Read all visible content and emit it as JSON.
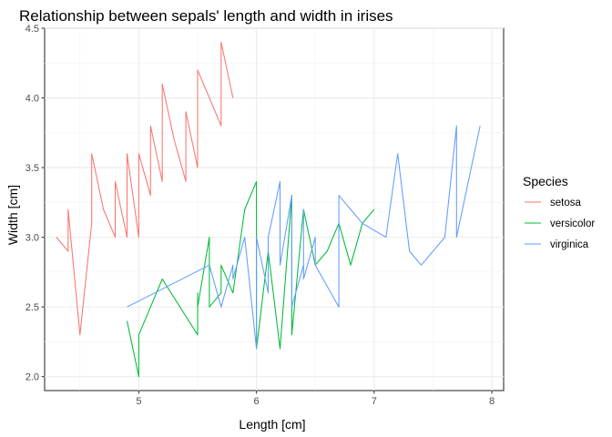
{
  "chart_data": {
    "type": "line",
    "title": "Relationship between sepals' length and width in irises",
    "xlabel": "Length [cm]",
    "ylabel": "Width [cm]",
    "xlim": [
      4.2,
      8.1
    ],
    "ylim": [
      1.9,
      4.5
    ],
    "x_ticks": [
      5,
      6,
      7,
      8
    ],
    "y_ticks": [
      2.0,
      2.5,
      3.0,
      3.5,
      4.0,
      4.5
    ],
    "y_tick_labels": [
      "2.0",
      "2.5",
      "3.0",
      "3.5",
      "4.0",
      "4.5"
    ],
    "grid": true,
    "legend_title": "Species",
    "legend_position": "right",
    "series": [
      {
        "name": "setosa",
        "color": "#F8766D",
        "x": [
          4.3,
          4.4,
          4.4,
          4.4,
          4.5,
          4.6,
          4.6,
          4.6,
          4.6,
          4.7,
          4.7,
          4.8,
          4.8,
          4.8,
          4.8,
          4.8,
          4.9,
          4.9,
          4.9,
          4.9,
          5.0,
          5.0,
          5.0,
          5.0,
          5.0,
          5.0,
          5.0,
          5.0,
          5.1,
          5.1,
          5.1,
          5.1,
          5.1,
          5.1,
          5.1,
          5.1,
          5.1,
          5.2,
          5.2,
          5.2,
          5.3,
          5.4,
          5.4,
          5.4,
          5.4,
          5.4,
          5.4,
          5.5,
          5.5,
          5.7,
          5.7,
          5.8
        ],
        "y": [
          3.0,
          2.9,
          3.0,
          3.2,
          2.3,
          3.1,
          3.2,
          3.4,
          3.6,
          3.2,
          3.2,
          3.0,
          3.0,
          3.1,
          3.4,
          3.4,
          3.0,
          3.1,
          3.1,
          3.6,
          3.0,
          3.2,
          3.3,
          3.4,
          3.4,
          3.5,
          3.5,
          3.6,
          3.3,
          3.4,
          3.5,
          3.5,
          3.7,
          3.8,
          3.8,
          3.8,
          3.8,
          3.4,
          3.5,
          4.1,
          3.7,
          3.4,
          3.7,
          3.9,
          3.9,
          3.4,
          3.9,
          3.5,
          4.2,
          3.8,
          4.4,
          4.0
        ]
      },
      {
        "name": "versicolor",
        "color": "#00BA38",
        "x": [
          4.9,
          5.0,
          5.0,
          5.1,
          5.2,
          5.5,
          5.5,
          5.5,
          5.5,
          5.6,
          5.6,
          5.7,
          5.7,
          5.8,
          5.9,
          6.0,
          6.0,
          6.1,
          6.2,
          6.3,
          6.3,
          6.4,
          6.5,
          6.6,
          6.7,
          6.8,
          6.9,
          7.0
        ],
        "y": [
          2.4,
          2.0,
          2.3,
          2.5,
          2.7,
          2.3,
          2.6,
          2.4,
          2.5,
          3.0,
          2.5,
          2.6,
          2.8,
          2.6,
          3.2,
          3.4,
          2.2,
          2.9,
          2.2,
          3.3,
          2.3,
          3.2,
          2.8,
          2.9,
          3.1,
          2.8,
          3.1,
          3.2
        ]
      },
      {
        "name": "virginica",
        "color": "#619CFF",
        "x": [
          4.9,
          5.6,
          5.7,
          5.8,
          5.8,
          5.9,
          6.0,
          6.0,
          6.1,
          6.1,
          6.2,
          6.2,
          6.3,
          6.3,
          6.4,
          6.4,
          6.4,
          6.5,
          6.5,
          6.7,
          6.7,
          6.8,
          6.9,
          7.1,
          7.2,
          7.3,
          7.4,
          7.6,
          7.7,
          7.7,
          7.9
        ],
        "y": [
          2.5,
          2.8,
          2.5,
          2.8,
          2.7,
          3.0,
          2.2,
          3.0,
          2.6,
          3.0,
          3.4,
          2.8,
          3.3,
          2.5,
          2.8,
          3.2,
          2.7,
          3.0,
          2.8,
          2.5,
          3.3,
          3.2,
          3.1,
          3.0,
          3.6,
          2.9,
          2.8,
          3.0,
          3.8,
          3.0,
          3.8
        ]
      }
    ]
  }
}
